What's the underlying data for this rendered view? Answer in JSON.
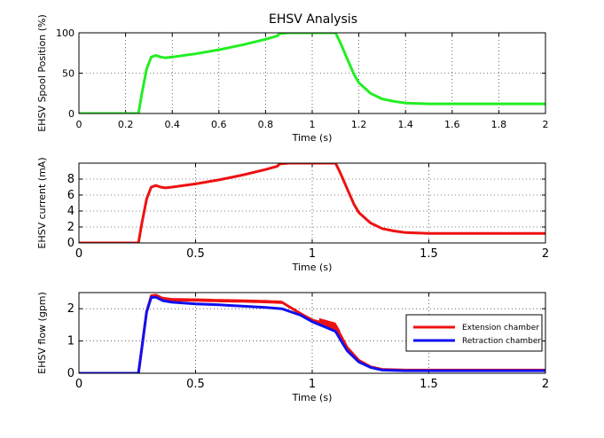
{
  "figure": {
    "title": "EHSV Analysis"
  },
  "chart_data": [
    {
      "type": "line",
      "title": "EHSV Analysis",
      "xlabel": "Time (s)",
      "ylabel": "EHSV Spool Position (%)",
      "xlim": [
        0,
        2
      ],
      "ylim": [
        0,
        100
      ],
      "xticks": [
        "0",
        "0.2",
        "0.4",
        "0.6",
        "0.8",
        "1",
        "1.2",
        "1.4",
        "1.6",
        "1.8",
        "2"
      ],
      "yticks": [
        "0",
        "50",
        "100"
      ],
      "grid": true,
      "series": [
        {
          "color": "#22ee22",
          "x": [
            0,
            0.24,
            0.255,
            0.27,
            0.29,
            0.31,
            0.33,
            0.35,
            0.37,
            0.4,
            0.5,
            0.6,
            0.7,
            0.8,
            0.85,
            0.86,
            0.9,
            1.0,
            1.1,
            1.12,
            1.15,
            1.18,
            1.2,
            1.25,
            1.3,
            1.35,
            1.4,
            1.5,
            1.6,
            1.8,
            2.0
          ],
          "y": [
            0,
            0,
            0,
            25,
            55,
            70,
            72,
            70,
            69,
            70,
            74,
            79,
            85,
            92,
            96,
            99,
            100,
            100,
            100,
            88,
            68,
            48,
            38,
            25,
            18,
            15,
            13,
            12,
            12,
            12,
            12
          ]
        }
      ]
    },
    {
      "type": "line",
      "xlabel": "Time (s)",
      "ylabel": "EHSV current (mA)",
      "xlim": [
        0,
        2
      ],
      "ylim": [
        0,
        10
      ],
      "xticks": [
        "0",
        "0.5",
        "1",
        "1.5",
        "2"
      ],
      "yticks": [
        "0",
        "2",
        "4",
        "6",
        "8"
      ],
      "grid": true,
      "series": [
        {
          "color": "#ee1111",
          "x": [
            0,
            0.24,
            0.255,
            0.27,
            0.29,
            0.31,
            0.33,
            0.35,
            0.37,
            0.4,
            0.5,
            0.6,
            0.7,
            0.8,
            0.85,
            0.86,
            0.9,
            1.0,
            1.1,
            1.12,
            1.15,
            1.18,
            1.2,
            1.25,
            1.3,
            1.35,
            1.4,
            1.5,
            1.6,
            1.8,
            2.0
          ],
          "y": [
            0,
            0,
            0,
            2.5,
            5.5,
            7.0,
            7.2,
            7.0,
            6.9,
            7.0,
            7.4,
            7.9,
            8.5,
            9.2,
            9.6,
            9.9,
            10,
            10,
            10,
            8.8,
            6.8,
            4.8,
            3.8,
            2.5,
            1.8,
            1.5,
            1.3,
            1.2,
            1.2,
            1.2,
            1.2
          ]
        }
      ]
    },
    {
      "type": "line",
      "xlabel": "Time (s)",
      "ylabel": "EHSV flow (gpm)",
      "xlim": [
        0,
        2
      ],
      "ylim": [
        0,
        2.5
      ],
      "xticks": [
        "0",
        "0.5",
        "1",
        "1.5",
        "2"
      ],
      "yticks": [
        "0",
        "1",
        "2"
      ],
      "grid": true,
      "legend": {
        "placement": "right",
        "entries": [
          "Extension chamber",
          "Retraction chamber"
        ]
      },
      "series": [
        {
          "name": "Extension chamber",
          "color": "#ee1111",
          "x": [
            0,
            0.24,
            0.255,
            0.27,
            0.29,
            0.31,
            0.33,
            0.36,
            0.4,
            0.5,
            0.6,
            0.7,
            0.8,
            0.87,
            0.95,
            1.0,
            1.05,
            1.1,
            1.12,
            1.15,
            1.2,
            1.25,
            1.3,
            1.4,
            1.6,
            1.8,
            2.0
          ],
          "y": [
            0,
            0,
            0,
            0.8,
            1.9,
            2.4,
            2.42,
            2.32,
            2.28,
            2.27,
            2.25,
            2.24,
            2.22,
            2.2,
            1.85,
            1.65,
            1.55,
            1.45,
            1.2,
            0.8,
            0.4,
            0.2,
            0.12,
            0.1,
            0.1,
            0.1,
            0.1
          ]
        },
        {
          "name": "Retraction chamber",
          "color": "#1111ee",
          "x": [
            0,
            0.24,
            0.255,
            0.27,
            0.29,
            0.31,
            0.33,
            0.36,
            0.4,
            0.5,
            0.6,
            0.7,
            0.8,
            0.87,
            0.95,
            1.0,
            1.05,
            1.1,
            1.12,
            1.15,
            1.2,
            1.25,
            1.3,
            1.4,
            1.6,
            1.8,
            2.0
          ],
          "y": [
            0,
            0,
            0,
            0.8,
            1.9,
            2.35,
            2.36,
            2.25,
            2.2,
            2.15,
            2.12,
            2.08,
            2.04,
            2.0,
            1.8,
            1.6,
            1.45,
            1.3,
            1.05,
            0.7,
            0.35,
            0.18,
            0.1,
            0.08,
            0.08,
            0.08,
            0.08
          ]
        }
      ],
      "noise_bands": [
        {
          "series": "Extension chamber",
          "x_start": 0.36,
          "x_end": 0.87,
          "amplitude": 0.05
        },
        {
          "series": "Extension chamber",
          "x_start": 1.03,
          "x_end": 1.12,
          "amplitude": 0.12
        }
      ]
    }
  ]
}
